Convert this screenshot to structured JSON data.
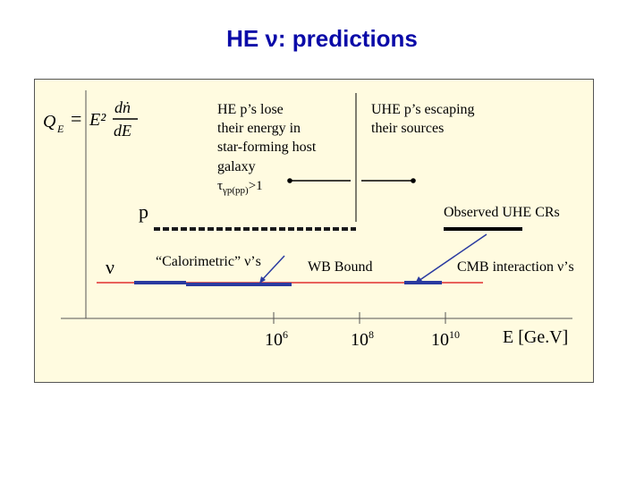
{
  "title": "HE ν: predictions",
  "formula": {
    "lhs": "Q",
    "lhs_sub": "E",
    "equals": "=",
    "e_squared": "E²",
    "numerator": "dṅ",
    "denominator": "dE"
  },
  "rows": {
    "proton": "p",
    "neutrino": "ν"
  },
  "annotations": {
    "he_p_lose": [
      "HE p’s lose",
      "their energy in",
      "star-forming host",
      "galaxy"
    ],
    "tau_text": "τγp(pp)>1",
    "uhe_escape": [
      "UHE p’s escaping",
      "their sources"
    ],
    "observed_uhe": "Observed UHE CRs",
    "calorimetric": "“Calorimetric” ν’s",
    "wb_bound": "WB Bound",
    "cmb_interaction": "CMB interaction ν’s"
  },
  "axis": {
    "ticks": [
      {
        "base": "10",
        "exp": "6"
      },
      {
        "base": "10",
        "exp": "8"
      },
      {
        "base": "10",
        "exp": "10"
      }
    ],
    "xlabel": "E [Ge.V]"
  },
  "colors": {
    "title": "#0a0aa8",
    "panel_bg": "#fffbe0",
    "wb_line": "#e03030",
    "nu_segments": "#2a3aa0",
    "arrows": "#2a3aa0",
    "dashed_line": "#1a1a1a"
  }
}
